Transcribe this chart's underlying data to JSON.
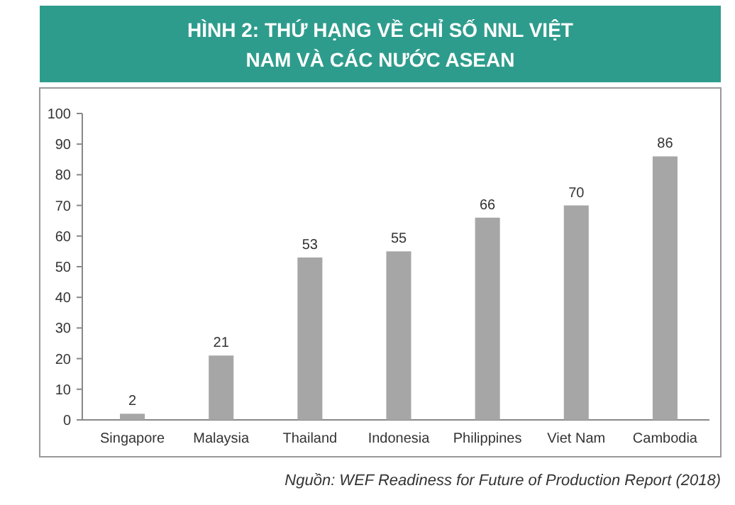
{
  "chart_data": {
    "type": "bar",
    "title": "HÌNH 2: THỨ HẠNG VỀ CHỈ SỐ NNL VIỆT NAM VÀ CÁC NƯỚC ASEAN",
    "categories": [
      "Singapore",
      "Malaysia",
      "Thailand",
      "Indonesia",
      "Philippines",
      "Viet Nam",
      "Cambodia"
    ],
    "values": [
      2,
      21,
      53,
      55,
      66,
      70,
      86
    ],
    "color": "#a6a6a6",
    "ylim": [
      0,
      100
    ],
    "yticks": [
      0,
      10,
      20,
      30,
      40,
      50,
      60,
      70,
      80,
      90,
      100
    ],
    "grid": false,
    "data_labels": true,
    "annotations": [
      "Nguồn: WEF Readiness for Future of Production Report (2018)"
    ]
  }
}
